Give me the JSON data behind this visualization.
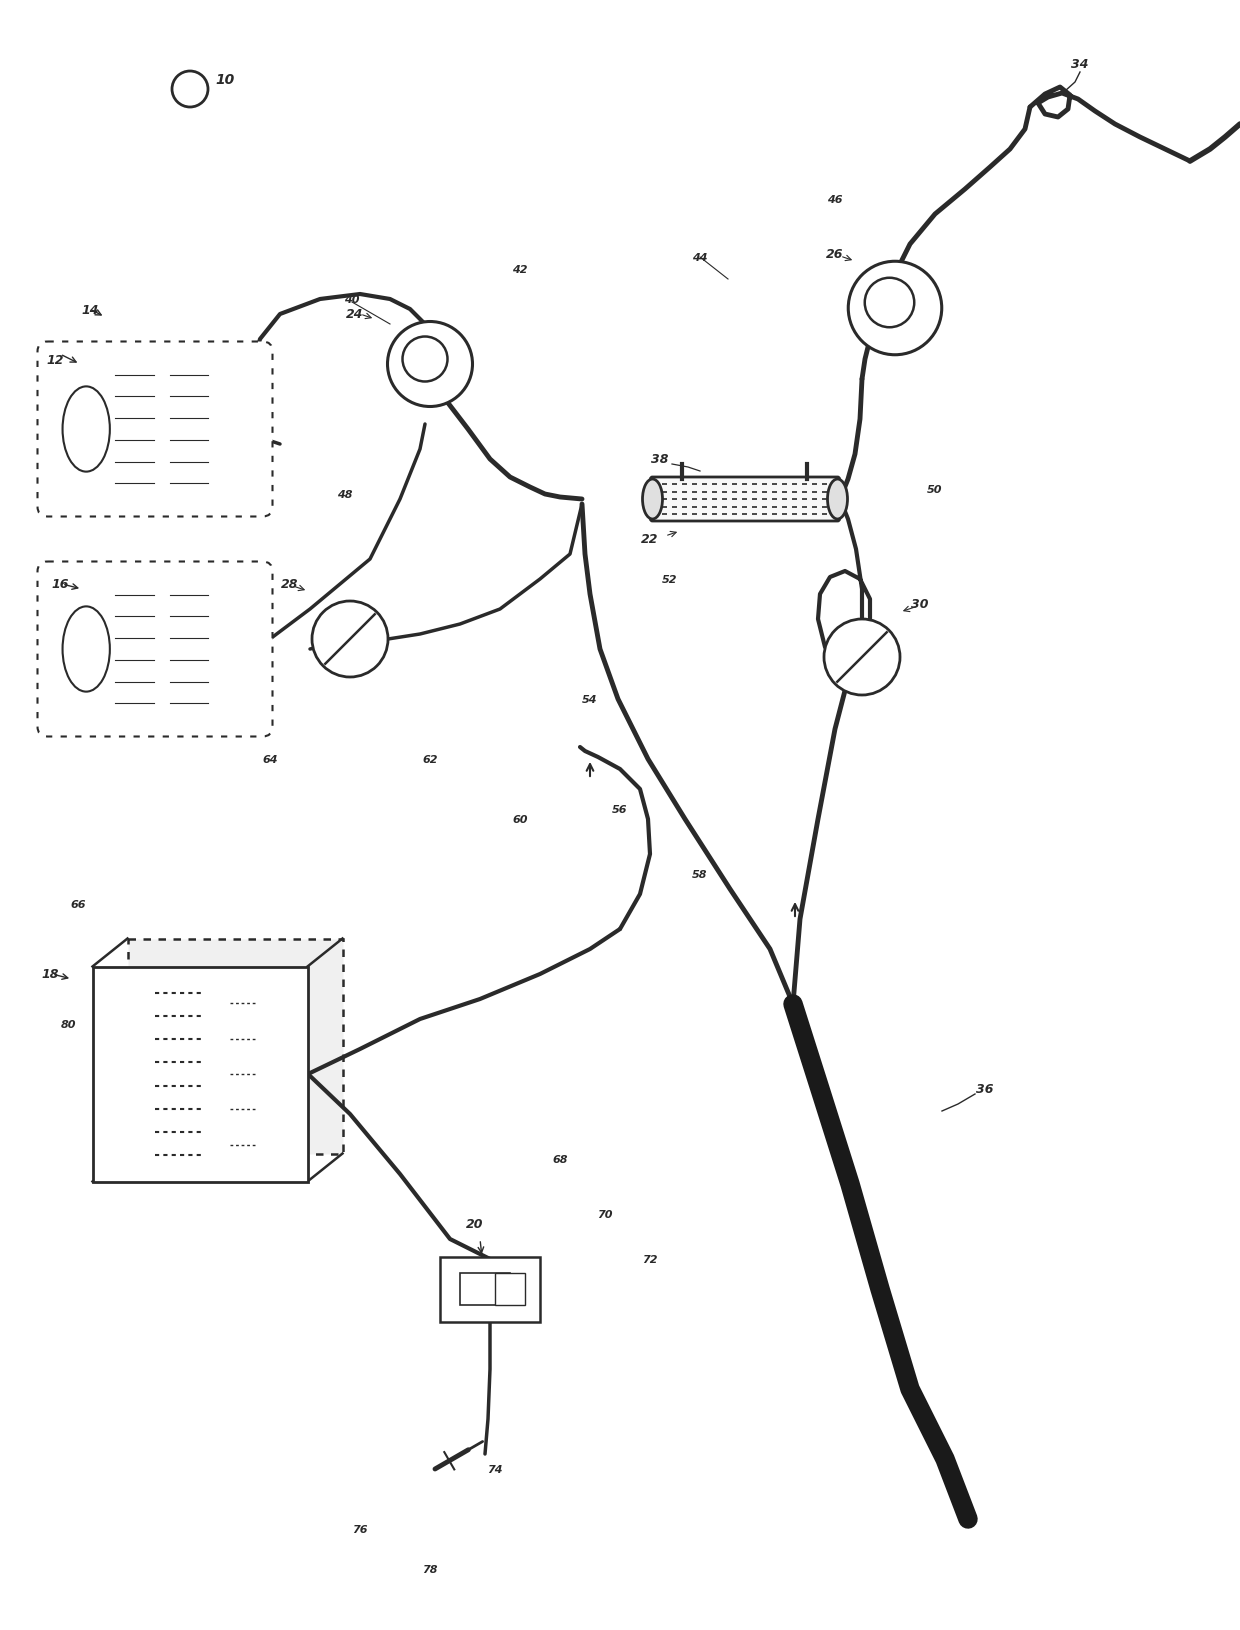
{
  "bg_color": "#ffffff",
  "lc": "#2a2a2a",
  "figsize": [
    12.4,
    16.31
  ],
  "dpi": 100,
  "tube_lw": 3.0,
  "thin_lw": 1.8,
  "thick_patient_lw": 14
}
